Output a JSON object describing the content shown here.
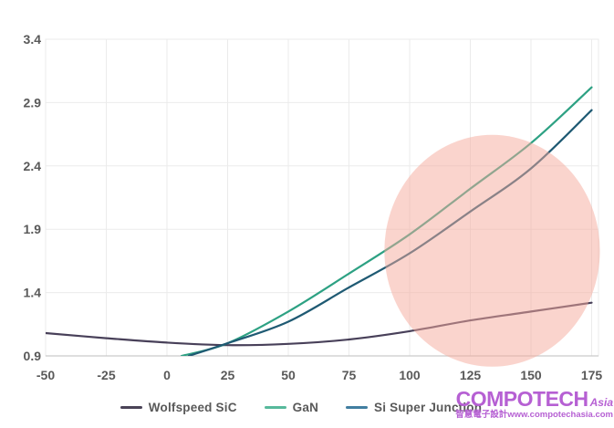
{
  "watermark": {
    "brand": "COMPOTECH",
    "brand_suffix": "Asia",
    "tagline": "智慧電子設計www.compotechasia.com",
    "color": "#b660d3"
  },
  "legend": {
    "items": [
      {
        "label": "Wolfspeed SiC",
        "color": "#4a4357"
      },
      {
        "label": "GaN",
        "color": "#57b99b"
      },
      {
        "label": "Si Super Junction",
        "color": "#417ea0"
      }
    ]
  },
  "chart_data": {
    "type": "line",
    "title": "",
    "xlabel": "",
    "ylabel": "",
    "x_ticks": [
      -50,
      -25,
      0,
      25,
      50,
      75,
      100,
      125,
      150,
      175
    ],
    "y_ticks": [
      0.9,
      1.4,
      1.9,
      2.4,
      2.9,
      3.4
    ],
    "xlim": [
      -50,
      177.5
    ],
    "ylim": [
      0.9,
      3.4
    ],
    "grid": true,
    "legend_position": "bottom",
    "axis_text_color": "#595959",
    "gridline_color": "#ebebeb",
    "axis_line_color": "#c9c9c9",
    "series": [
      {
        "name": "Wolfspeed SiC",
        "color": "#484059",
        "points": [
          [
            -50,
            1.08
          ],
          [
            -25,
            1.04
          ],
          [
            0,
            1.005
          ],
          [
            25,
            0.985
          ],
          [
            50,
            0.995
          ],
          [
            75,
            1.03
          ],
          [
            100,
            1.095
          ],
          [
            125,
            1.18
          ],
          [
            150,
            1.25
          ],
          [
            175,
            1.32
          ]
        ]
      },
      {
        "name": "GaN",
        "color": "#2da183",
        "points": [
          [
            6,
            0.9
          ],
          [
            25,
            1.0
          ],
          [
            50,
            1.25
          ],
          [
            75,
            1.55
          ],
          [
            100,
            1.86
          ],
          [
            125,
            2.22
          ],
          [
            150,
            2.58
          ],
          [
            175,
            3.02
          ]
        ]
      },
      {
        "name": "Si Super Junction",
        "color": "#1f5a73",
        "points": [
          [
            9,
            0.9
          ],
          [
            25,
            1.0
          ],
          [
            50,
            1.17
          ],
          [
            75,
            1.44
          ],
          [
            100,
            1.71
          ],
          [
            125,
            2.04
          ],
          [
            150,
            2.38
          ],
          [
            175,
            2.84
          ]
        ]
      }
    ],
    "annotations": [
      {
        "type": "ellipse",
        "cx": 134,
        "cy": 1.73,
        "rx": 44.4,
        "ry": 0.915,
        "fill": "#f5a99c",
        "opacity": 0.5
      }
    ]
  }
}
